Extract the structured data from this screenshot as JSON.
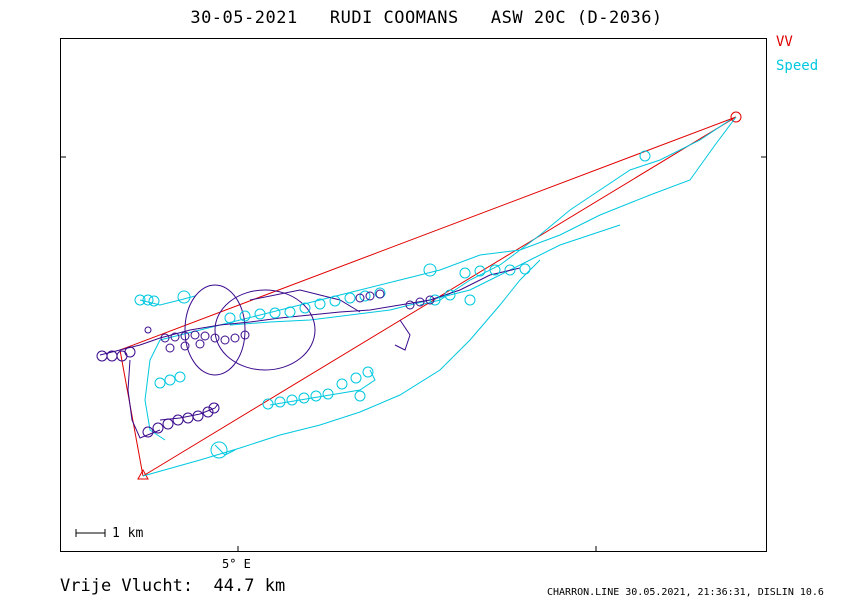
{
  "title": "30-05-2021   RUDI COOMANS   ASW 20C (D-2036)",
  "legend": {
    "vv": {
      "label": "VV",
      "color": "#e00000"
    },
    "speed": {
      "label": "Speed",
      "color": "#00c8e0"
    }
  },
  "axis": {
    "lon_label": "5° E"
  },
  "scale": {
    "label": "1  km"
  },
  "footer": {
    "free_flight_label": "Vrije Vlucht:",
    "free_flight_value": "44.7 km",
    "credit": "CHARRON.LINE 30.05.2021, 21:36:31, DISLIN 10.6"
  },
  "colors": {
    "track_fast": "#00c8e0",
    "track_slow": "#3a0a8c",
    "task": "#e00000",
    "frame": "#000000"
  }
}
